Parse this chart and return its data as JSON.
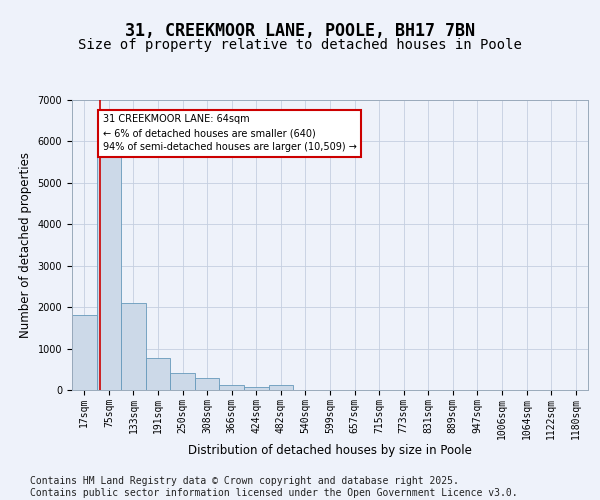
{
  "title": "31, CREEKMOOR LANE, POOLE, BH17 7BN",
  "subtitle": "Size of property relative to detached houses in Poole",
  "xlabel": "Distribution of detached houses by size in Poole",
  "ylabel": "Number of detached properties",
  "categories": [
    "17sqm",
    "75sqm",
    "133sqm",
    "191sqm",
    "250sqm",
    "308sqm",
    "366sqm",
    "424sqm",
    "482sqm",
    "540sqm",
    "599sqm",
    "657sqm",
    "715sqm",
    "773sqm",
    "831sqm",
    "889sqm",
    "947sqm",
    "1006sqm",
    "1064sqm",
    "1122sqm",
    "1180sqm"
  ],
  "values": [
    1800,
    5850,
    2100,
    780,
    420,
    280,
    130,
    80,
    110,
    0,
    0,
    0,
    0,
    0,
    0,
    0,
    0,
    0,
    0,
    0,
    0
  ],
  "bar_color": "#ccd9e8",
  "bar_edge_color": "#6699bb",
  "annotation_text": "31 CREEKMOOR LANE: 64sqm\n← 6% of detached houses are smaller (640)\n94% of semi-detached houses are larger (10,509) →",
  "annotation_box_facecolor": "#ffffff",
  "annotation_box_edgecolor": "#cc0000",
  "vline_color": "#cc0000",
  "vline_x": 0.62,
  "ylim": [
    0,
    7000
  ],
  "yticks": [
    0,
    1000,
    2000,
    3000,
    4000,
    5000,
    6000,
    7000
  ],
  "bg_color": "#eef2fa",
  "grid_color": "#c5cfe0",
  "title_fontsize": 12,
  "subtitle_fontsize": 10,
  "axis_label_fontsize": 8.5,
  "tick_fontsize": 7,
  "footer_fontsize": 7,
  "footer_line1": "Contains HM Land Registry data © Crown copyright and database right 2025.",
  "footer_line2": "Contains public sector information licensed under the Open Government Licence v3.0."
}
